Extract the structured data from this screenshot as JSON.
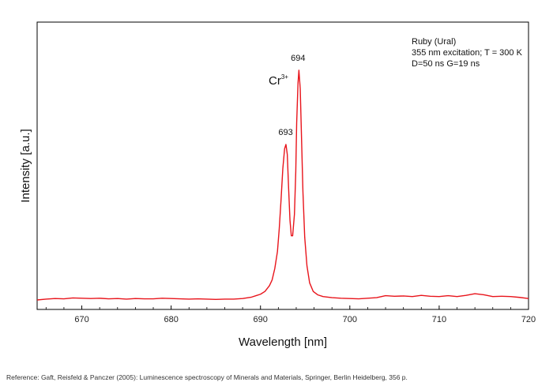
{
  "chart_data": {
    "type": "line",
    "title": "",
    "xlabel": "Wavelength [nm]",
    "ylabel": "Intensity [a.u.]",
    "xlim": [
      665,
      720
    ],
    "ylim": [
      0,
      1.0
    ],
    "x_ticks": [
      670,
      680,
      690,
      700,
      710,
      720
    ],
    "grid": false,
    "line_color": "#e8141b",
    "annotations": {
      "sample_lines": [
        "Ruby (Ural)",
        "355 nm excitation; T = 300 K",
        "D=50 ns G=19 ns"
      ],
      "ion_base": "Cr",
      "ion_sup": "3+",
      "peaks": [
        {
          "label": "693",
          "x": 692.9,
          "y": 0.545
        },
        {
          "label": "694",
          "x": 694.3,
          "y": 0.805
        }
      ]
    },
    "series": [
      {
        "x": [
          665.0,
          666.0,
          667.0,
          668.0,
          669.0,
          670.0,
          671.0,
          672.0,
          673.0,
          674.0,
          675.0,
          676.0,
          677.0,
          678.0,
          679.0,
          680.0,
          681.0,
          682.0,
          683.0,
          684.0,
          685.0,
          686.0,
          687.0,
          688.0,
          689.0,
          689.5,
          690.0,
          690.5,
          691.0,
          691.3,
          691.6,
          691.9,
          692.1,
          692.3,
          692.5,
          692.7,
          692.85,
          693.0,
          693.15,
          693.3,
          693.45,
          693.6,
          693.8,
          693.95,
          694.05,
          694.2,
          694.3,
          694.45,
          694.6,
          694.75,
          694.95,
          695.2,
          695.5,
          695.9,
          696.4,
          697.0,
          698.0,
          699.0,
          700.0,
          701.0,
          702.0,
          703.0,
          704.0,
          705.0,
          706.0,
          707.0,
          708.0,
          709.0,
          710.0,
          711.0,
          712.0,
          713.0,
          714.0,
          715.0,
          716.0,
          717.0,
          718.0,
          719.0,
          720.0
        ],
        "y": [
          0.0,
          0.003,
          0.005,
          0.004,
          0.007,
          0.006,
          0.005,
          0.006,
          0.004,
          0.005,
          0.003,
          0.005,
          0.004,
          0.004,
          0.006,
          0.005,
          0.004,
          0.003,
          0.004,
          0.003,
          0.002,
          0.003,
          0.003,
          0.005,
          0.01,
          0.015,
          0.02,
          0.03,
          0.05,
          0.07,
          0.11,
          0.17,
          0.25,
          0.35,
          0.46,
          0.53,
          0.545,
          0.51,
          0.39,
          0.28,
          0.225,
          0.225,
          0.3,
          0.45,
          0.62,
          0.76,
          0.805,
          0.74,
          0.56,
          0.38,
          0.22,
          0.12,
          0.06,
          0.03,
          0.018,
          0.012,
          0.008,
          0.006,
          0.005,
          0.004,
          0.006,
          0.008,
          0.015,
          0.013,
          0.014,
          0.012,
          0.016,
          0.013,
          0.012,
          0.015,
          0.012,
          0.016,
          0.022,
          0.018,
          0.012,
          0.013,
          0.012,
          0.009,
          0.005
        ]
      }
    ]
  },
  "reference": "Reference: Gaft, Reisfeld & Panczer (2005): Luminescence spectroscopy of Minerals and Materials, Springer, Berlin Heidelberg, 356 p."
}
